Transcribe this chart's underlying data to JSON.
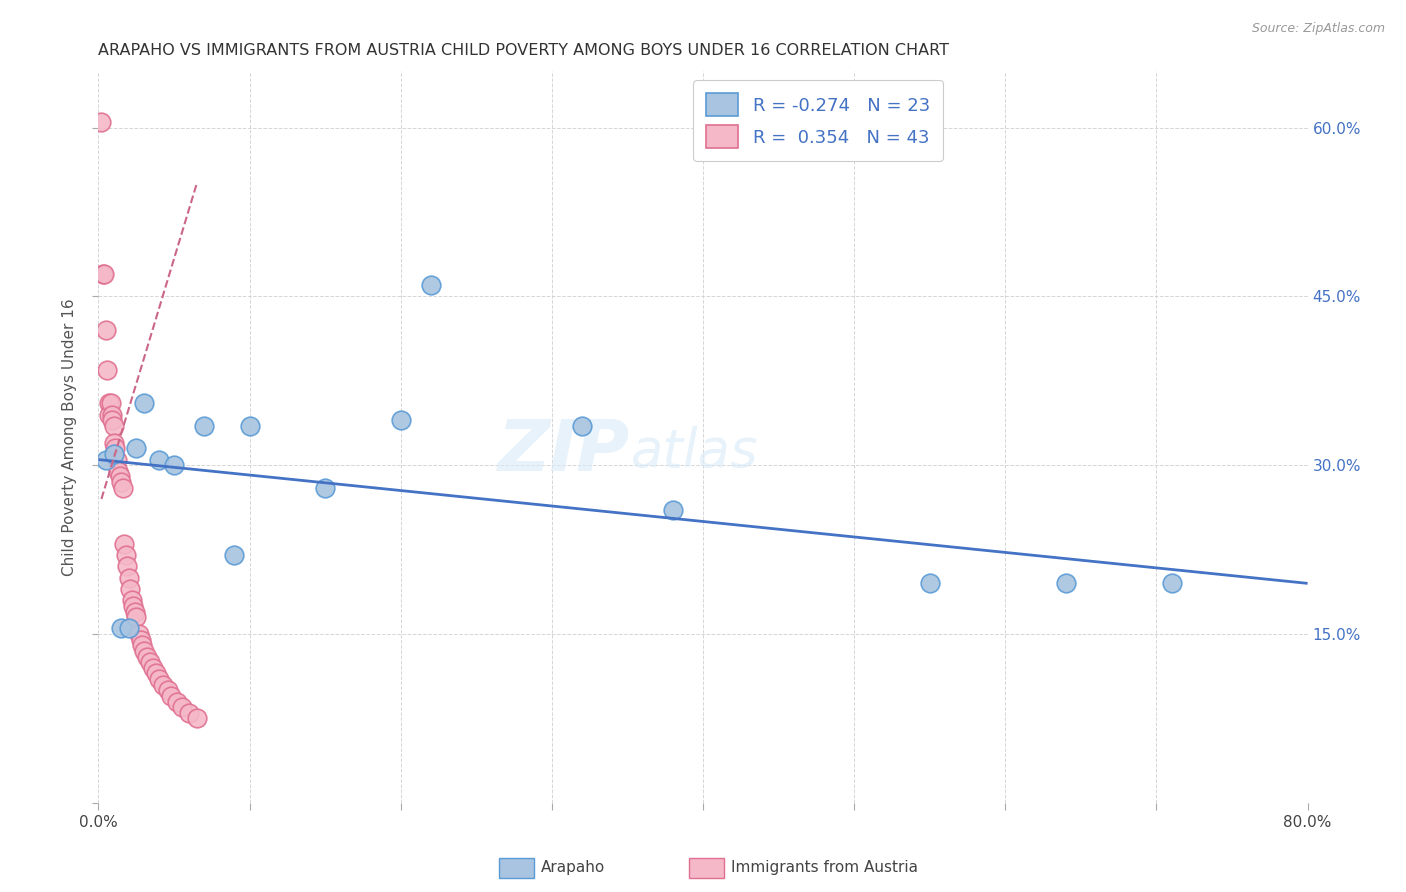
{
  "title": "ARAPAHO VS IMMIGRANTS FROM AUSTRIA CHILD POVERTY AMONG BOYS UNDER 16 CORRELATION CHART",
  "source": "Source: ZipAtlas.com",
  "ylabel": "Child Poverty Among Boys Under 16",
  "xlim": [
    0,
    0.8
  ],
  "ylim": [
    0,
    0.65
  ],
  "arapaho_color": "#a8c4e0",
  "austria_color": "#f4b8c8",
  "arapaho_edge_color": "#5b9bd5",
  "austria_edge_color": "#e07090",
  "arapaho_line_color": "#4472c4",
  "austria_line_color": "#cc6688",
  "watermark_zip": "ZIP",
  "watermark_atlas": "atlas",
  "arapaho_x": [
    0.005,
    0.01,
    0.015,
    0.02,
    0.025,
    0.03,
    0.04,
    0.05,
    0.07,
    0.09,
    0.1,
    0.15,
    0.2,
    0.22,
    0.32,
    0.38,
    0.55,
    0.64,
    0.71
  ],
  "arapaho_y": [
    0.305,
    0.31,
    0.155,
    0.155,
    0.315,
    0.355,
    0.305,
    0.3,
    0.335,
    0.22,
    0.335,
    0.28,
    0.34,
    0.46,
    0.335,
    0.26,
    0.195,
    0.195,
    0.195
  ],
  "austria_x": [
    0.002,
    0.003,
    0.004,
    0.005,
    0.006,
    0.007,
    0.007,
    0.008,
    0.009,
    0.009,
    0.01,
    0.01,
    0.011,
    0.012,
    0.013,
    0.014,
    0.015,
    0.016,
    0.017,
    0.018,
    0.019,
    0.02,
    0.021,
    0.022,
    0.023,
    0.024,
    0.025,
    0.027,
    0.028,
    0.029,
    0.03,
    0.032,
    0.034,
    0.036,
    0.038,
    0.04,
    0.043,
    0.046,
    0.048,
    0.052,
    0.055,
    0.06,
    0.065
  ],
  "austria_y": [
    0.605,
    0.47,
    0.47,
    0.42,
    0.385,
    0.355,
    0.345,
    0.355,
    0.345,
    0.34,
    0.335,
    0.32,
    0.315,
    0.305,
    0.295,
    0.29,
    0.285,
    0.28,
    0.23,
    0.22,
    0.21,
    0.2,
    0.19,
    0.18,
    0.175,
    0.17,
    0.165,
    0.15,
    0.145,
    0.14,
    0.135,
    0.13,
    0.125,
    0.12,
    0.115,
    0.11,
    0.105,
    0.1,
    0.095,
    0.09,
    0.085,
    0.08,
    0.075
  ],
  "blue_trend_x0": 0.0,
  "blue_trend_x1": 0.8,
  "blue_trend_y0": 0.305,
  "blue_trend_y1": 0.195,
  "pink_trend_x0": 0.002,
  "pink_trend_x1": 0.065,
  "pink_trend_y0": 0.27,
  "pink_trend_y1": 0.55
}
